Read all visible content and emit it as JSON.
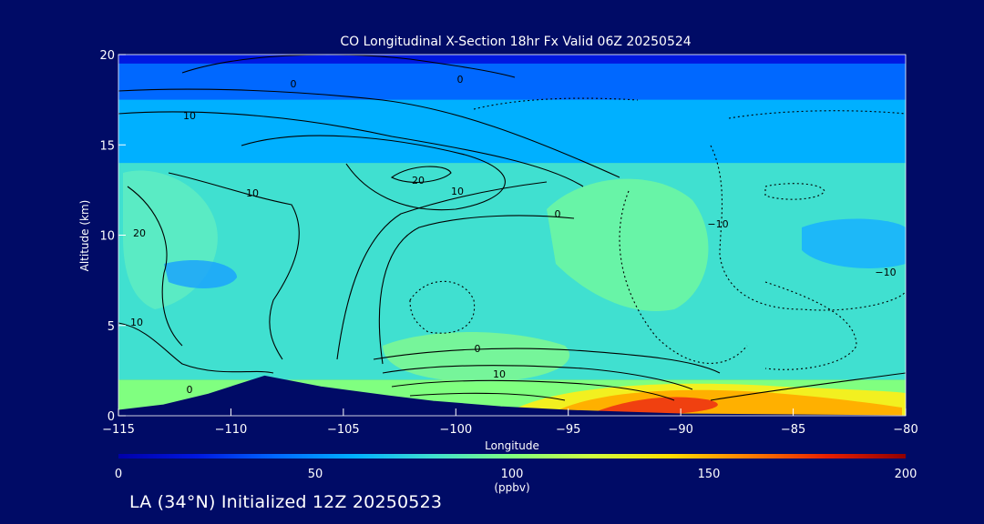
{
  "chart_data": {
    "type": "heatmap",
    "title": "CO Longitudinal X-Section 18hr  Fx Valid 06Z 20250524",
    "xlabel": "Longitude",
    "ylabel": "Altitude (km)",
    "xlim": [
      -115,
      -80
    ],
    "ylim": [
      0,
      20
    ],
    "x_ticks": [
      -115,
      -110,
      -105,
      -100,
      -95,
      -90,
      -85,
      -80
    ],
    "x_tick_labels": [
      "−115",
      "−110",
      "−105",
      "−100",
      "−95",
      "−90",
      "−85",
      "−80"
    ],
    "y_ticks": [
      0,
      5,
      10,
      15,
      20
    ],
    "y_tick_labels": [
      "0",
      "5",
      "10",
      "15",
      "20"
    ],
    "colorbar": {
      "range": [
        0,
        200
      ],
      "ticks": [
        0,
        50,
        100,
        150,
        200
      ],
      "tick_labels": [
        "0",
        "50",
        "100",
        "150",
        "200"
      ],
      "unit": "(ppbv)",
      "colors": [
        "#0000a8",
        "#0018e0",
        "#0068ff",
        "#00b0ff",
        "#40e0d0",
        "#80ff80",
        "#d0ff40",
        "#ffe000",
        "#ff8000",
        "#e82000",
        "#900000"
      ]
    },
    "shaded_bands_ppbv": [
      {
        "alt_range_km": [
          19.5,
          20
        ],
        "value": 25
      },
      {
        "alt_range_km": [
          17.5,
          19.5
        ],
        "value": 35
      },
      {
        "alt_range_km": [
          14,
          17.5
        ],
        "value": 55
      },
      {
        "alt_range_km": [
          2,
          14
        ],
        "value": 85
      },
      {
        "alt_range_km": [
          0,
          2
        ],
        "value": 100
      }
    ],
    "high_regions": [
      {
        "lon_range": [
          -95,
          -85
        ],
        "alt_range_km": [
          0,
          1
        ],
        "value": 160
      }
    ],
    "terrain": [
      [
        -115,
        0.3
      ],
      [
        -113,
        0.6
      ],
      [
        -111,
        1.2
      ],
      [
        -108.5,
        2.2
      ],
      [
        -106,
        1.6
      ],
      [
        -103,
        1.1
      ],
      [
        -101,
        0.8
      ],
      [
        -98,
        0.5
      ],
      [
        -95,
        0.3
      ],
      [
        -90,
        0.1
      ],
      [
        -80,
        0.0
      ]
    ],
    "contour_labels": [
      "0",
      "10",
      "20",
      "10",
      "20",
      "10",
      "0",
      "−10",
      "−10",
      "10",
      "0",
      "10",
      "0",
      "0"
    ]
  },
  "footer": {
    "location_label": "LA (34°N) Initialized 12Z 20250523"
  }
}
